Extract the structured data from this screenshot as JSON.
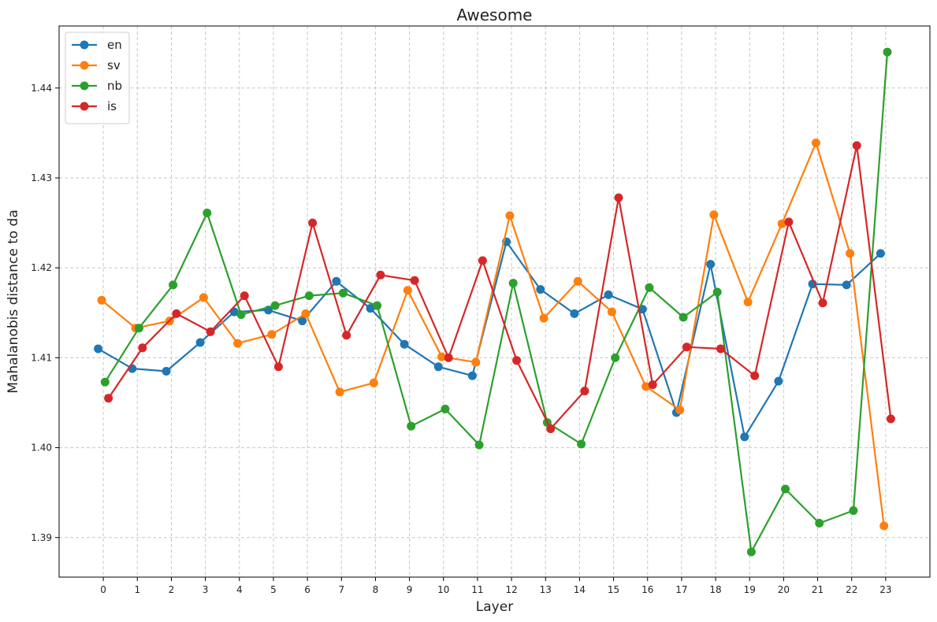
{
  "chart_data": {
    "type": "line",
    "title": "Awesome",
    "xlabel": "Layer",
    "ylabel": "Mahalanobis distance to da",
    "x": [
      0,
      1,
      2,
      3,
      4,
      5,
      6,
      7,
      8,
      9,
      10,
      11,
      12,
      13,
      14,
      15,
      16,
      17,
      18,
      19,
      20,
      21,
      22,
      23
    ],
    "x_tick_labels": [
      "0",
      "1",
      "2",
      "3",
      "4",
      "5",
      "6",
      "7",
      "8",
      "9",
      "10",
      "11",
      "12",
      "13",
      "14",
      "15",
      "16",
      "17",
      "18",
      "19",
      "20",
      "21",
      "22",
      "23"
    ],
    "xlim": [
      -1.3,
      24.3
    ],
    "ylim": [
      1.3856,
      1.4469
    ],
    "y_ticks": [
      1.39,
      1.4,
      1.41,
      1.42,
      1.43,
      1.44
    ],
    "y_tick_labels": [
      "1.39",
      "1.40",
      "1.41",
      "1.42",
      "1.43",
      "1.44"
    ],
    "grid": true,
    "legend_position": "top-left",
    "series": [
      {
        "name": "en",
        "color": "#1f77b4",
        "x_offset": -0.15,
        "values": [
          1.411,
          1.4088,
          1.4085,
          1.4117,
          1.4151,
          1.4153,
          1.4141,
          1.4185,
          1.4155,
          1.4115,
          1.409,
          1.408,
          1.4229,
          1.4176,
          1.4149,
          1.417,
          1.4154,
          1.4039,
          1.4204,
          1.4012,
          1.4074,
          1.4182,
          1.4181,
          1.4216
        ]
      },
      {
        "name": "sv",
        "color": "#ff7f0e",
        "x_offset": -0.05,
        "values": [
          1.4164,
          1.4133,
          1.4141,
          1.4167,
          1.4116,
          1.4126,
          1.4149,
          1.4062,
          1.4072,
          1.4175,
          1.4101,
          1.4095,
          1.4258,
          1.4144,
          1.4185,
          1.4151,
          1.4068,
          1.4042,
          1.4259,
          1.4162,
          1.4249,
          1.4339,
          1.4216,
          1.3913
        ]
      },
      {
        "name": "nb",
        "color": "#2ca02c",
        "x_offset": 0.05,
        "values": [
          1.4073,
          1.4133,
          1.4181,
          1.4261,
          1.4148,
          1.4158,
          1.4169,
          1.4172,
          1.4158,
          1.4024,
          1.4043,
          1.4003,
          1.4183,
          1.4028,
          1.4004,
          1.41,
          1.4178,
          1.4145,
          1.4173,
          1.3884,
          1.3954,
          1.3916,
          1.393,
          1.444
        ]
      },
      {
        "name": "is",
        "color": "#d62728",
        "x_offset": 0.15,
        "values": [
          1.4055,
          1.4111,
          1.4149,
          1.4129,
          1.4169,
          1.409,
          1.425,
          1.4125,
          1.4192,
          1.4186,
          1.41,
          1.4208,
          1.4097,
          1.4021,
          1.4063,
          1.4278,
          1.407,
          1.4112,
          1.411,
          1.408,
          1.4251,
          1.4161,
          1.4336,
          1.4032
        ]
      }
    ]
  }
}
